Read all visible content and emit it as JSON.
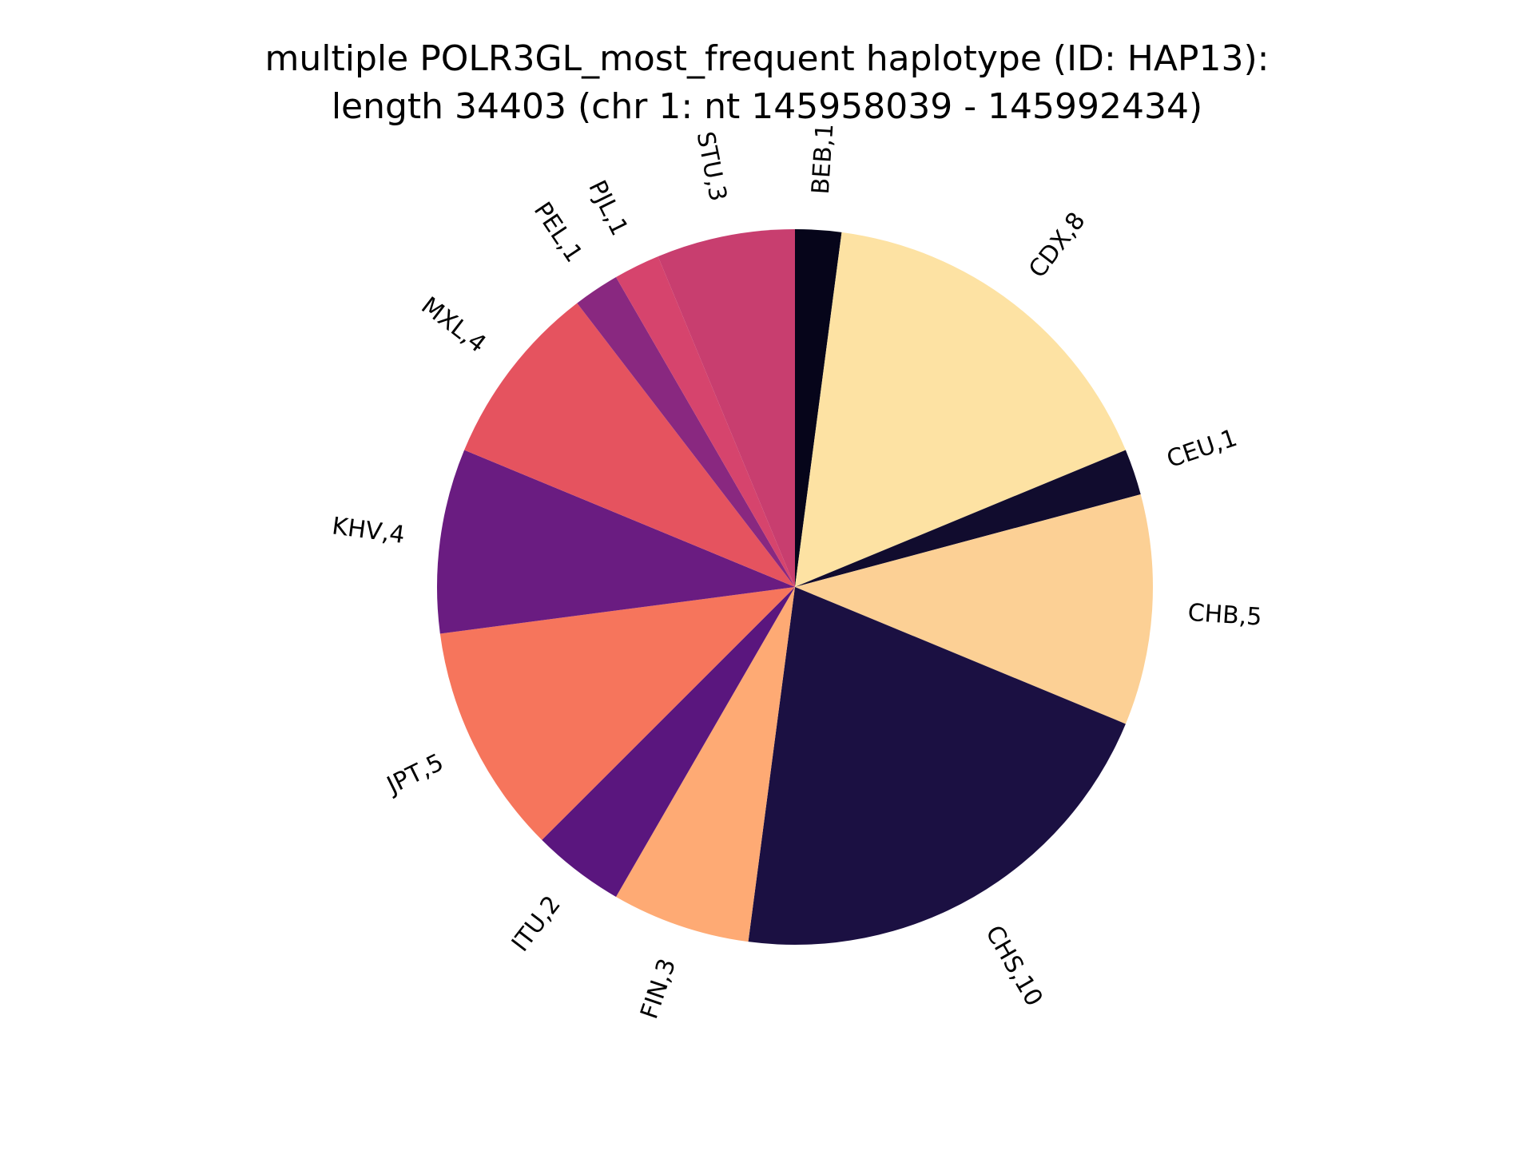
{
  "chart_data": {
    "type": "pie",
    "title": "multiple POLR3GL_most_frequent haplotype (ID: HAP13):",
    "subtitle": "length 34403 (chr 1: nt 145958039 - 145992434)",
    "slices": [
      {
        "label": "BEB,1",
        "value": 1,
        "color": "#06051a"
      },
      {
        "label": "CDX,8",
        "value": 8,
        "color": "#fde2a3"
      },
      {
        "label": "CEU,1",
        "value": 1,
        "color": "#110c2e"
      },
      {
        "label": "CHB,5",
        "value": 5,
        "color": "#fcd095"
      },
      {
        "label": "CHS,10",
        "value": 10,
        "color": "#1b1042"
      },
      {
        "label": "FIN,3",
        "value": 3,
        "color": "#feaa74"
      },
      {
        "label": "ITU,2",
        "value": 2,
        "color": "#5a167e"
      },
      {
        "label": "JPT,5",
        "value": 5,
        "color": "#f6755c"
      },
      {
        "label": "KHV,4",
        "value": 4,
        "color": "#6a1c81"
      },
      {
        "label": "MXL,4",
        "value": 4,
        "color": "#e5535f"
      },
      {
        "label": "PEL,1",
        "value": 1,
        "color": "#892880"
      },
      {
        "label": "PJL,1",
        "value": 1,
        "color": "#d6446d"
      },
      {
        "label": "STU,3",
        "value": 3,
        "color": "#c83e6f"
      }
    ],
    "start": "top",
    "direction": "clockwise",
    "labels_rotated": true
  }
}
